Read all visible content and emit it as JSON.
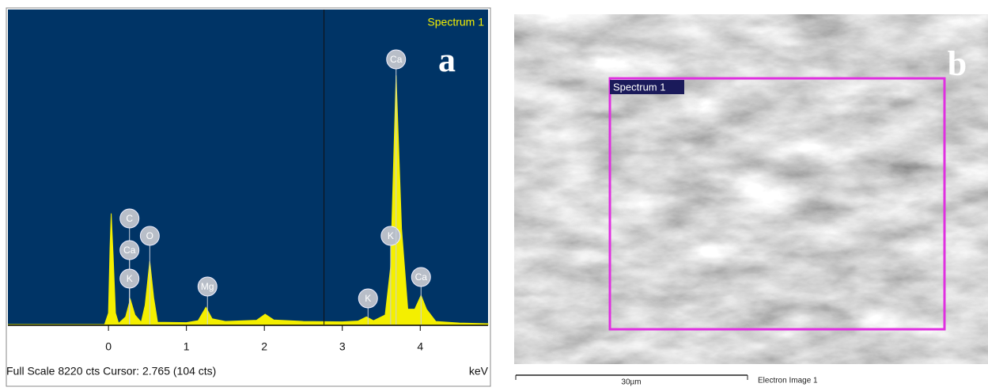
{
  "chart_data": {
    "type": "area",
    "title": "Spectrum 1",
    "panel_label": "a",
    "x_unit": "keV",
    "footer": "Full Scale 8220 cts Cursor: 2.765  (104 cts)",
    "cursor_x": 2.765,
    "x": [
      -1.29,
      -0.05,
      0.0,
      0.02,
      0.035,
      0.06,
      0.09,
      0.13,
      0.22,
      0.28,
      0.34,
      0.42,
      0.47,
      0.53,
      0.58,
      0.63,
      1.0,
      1.15,
      1.25,
      1.33,
      1.5,
      1.9,
      2.01,
      2.12,
      2.5,
      3.0,
      3.2,
      3.31,
      3.4,
      3.55,
      3.62,
      3.69,
      3.76,
      3.84,
      3.93,
      4.01,
      4.08,
      4.2,
      4.5,
      4.87
    ],
    "series": [
      {
        "name": "Spectrum 1",
        "color": "#f4ef00",
        "values": [
          0,
          0,
          300,
          2000,
          2900,
          1800,
          300,
          30,
          200,
          660,
          250,
          60,
          500,
          1650,
          700,
          60,
          50,
          100,
          450,
          150,
          80,
          110,
          270,
          120,
          80,
          70,
          90,
          200,
          100,
          250,
          1500,
          6500,
          2500,
          400,
          400,
          760,
          400,
          80,
          40,
          20
        ]
      }
    ],
    "markers": [
      {
        "label": "C",
        "x": 0.27
      },
      {
        "label": "Ca",
        "x": 0.27
      },
      {
        "label": "K",
        "x": 0.27
      },
      {
        "label": "O",
        "x": 0.53
      },
      {
        "label": "Mg",
        "x": 1.27
      },
      {
        "label": "K",
        "x": 3.33
      },
      {
        "label": "K",
        "x": 3.62
      },
      {
        "label": "Ca",
        "x": 3.69
      },
      {
        "label": "Ca",
        "x": 4.01
      }
    ],
    "xlim": [
      -1.29,
      4.87
    ],
    "ylim": [
      0,
      8220
    ],
    "xticks": [
      0,
      1,
      2,
      3,
      4
    ]
  },
  "image": {
    "panel_label": "b",
    "region_label": "Spectrum 1",
    "scale_bar": "30µm",
    "caption": "Electron Image 1"
  }
}
